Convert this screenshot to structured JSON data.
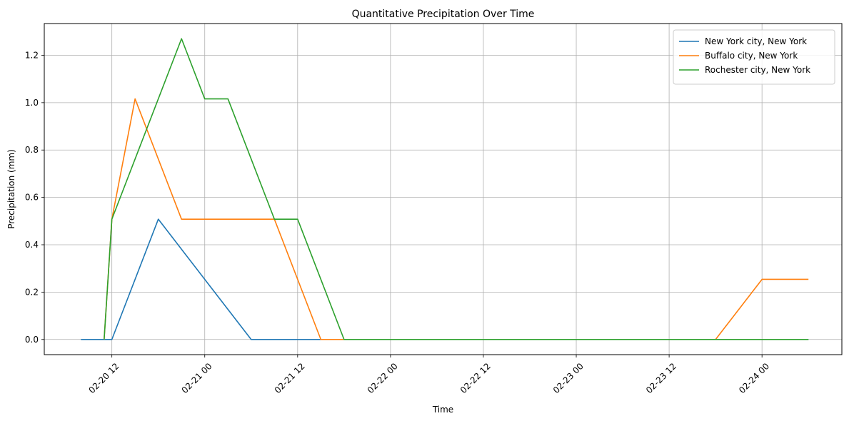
{
  "chart_data": {
    "type": "line",
    "title": "Quantitative Precipitation Over Time",
    "xlabel": "Time",
    "ylabel": "Precipitation (mm)",
    "grid": true,
    "legend_position": "top-right",
    "x_axis_type": "datetime",
    "xlim": [
      "2024-02-20T03:16",
      "2024-02-24T10:19"
    ],
    "ylim": [
      -0.064,
      1.334
    ],
    "x_ticks": [
      {
        "value": "2024-02-20T12:00",
        "label": "02-20 12"
      },
      {
        "value": "2024-02-21T00:00",
        "label": "02-21 00"
      },
      {
        "value": "2024-02-21T12:00",
        "label": "02-21 12"
      },
      {
        "value": "2024-02-22T00:00",
        "label": "02-22 00"
      },
      {
        "value": "2024-02-22T12:00",
        "label": "02-22 12"
      },
      {
        "value": "2024-02-23T00:00",
        "label": "02-23 00"
      },
      {
        "value": "2024-02-23T12:00",
        "label": "02-23 12"
      },
      {
        "value": "2024-02-24T00:00",
        "label": "02-24 00"
      }
    ],
    "y_ticks": [
      {
        "value": 0.0,
        "label": "0.0"
      },
      {
        "value": 0.2,
        "label": "0.2"
      },
      {
        "value": 0.4,
        "label": "0.4"
      },
      {
        "value": 0.6,
        "label": "0.6"
      },
      {
        "value": 0.8,
        "label": "0.8"
      },
      {
        "value": 1.0,
        "label": "1.0"
      },
      {
        "value": 1.2,
        "label": "1.2"
      }
    ],
    "series": [
      {
        "name": "New York city, New York",
        "color": "#1f77b4",
        "points": [
          {
            "x": "2024-02-20T08:00",
            "y": 0.0
          },
          {
            "x": "2024-02-20T12:00",
            "y": 0.0
          },
          {
            "x": "2024-02-20T18:00",
            "y": 0.508
          },
          {
            "x": "2024-02-21T00:00",
            "y": 0.254
          },
          {
            "x": "2024-02-21T06:00",
            "y": 0.0
          },
          {
            "x": "2024-02-21T12:00",
            "y": 0.0
          },
          {
            "x": "2024-02-21T18:00",
            "y": 0.0
          },
          {
            "x": "2024-02-22T00:00",
            "y": 0.0
          },
          {
            "x": "2024-02-23T06:00",
            "y": 0.0
          },
          {
            "x": "2024-02-23T12:00",
            "y": 0.0
          },
          {
            "x": "2024-02-24T00:00",
            "y": 0.0
          },
          {
            "x": "2024-02-24T06:00",
            "y": 0.0
          }
        ]
      },
      {
        "name": "Buffalo city, New York",
        "color": "#ff7f0e",
        "points": [
          {
            "x": "2024-02-20T11:00",
            "y": 0.0
          },
          {
            "x": "2024-02-20T12:00",
            "y": 0.508
          },
          {
            "x": "2024-02-20T15:00",
            "y": 1.016
          },
          {
            "x": "2024-02-20T21:00",
            "y": 0.508
          },
          {
            "x": "2024-02-21T00:00",
            "y": 0.508
          },
          {
            "x": "2024-02-21T09:00",
            "y": 0.508
          },
          {
            "x": "2024-02-21T15:00",
            "y": 0.0
          },
          {
            "x": "2024-02-21T18:00",
            "y": 0.0
          },
          {
            "x": "2024-02-23T18:00",
            "y": 0.0
          },
          {
            "x": "2024-02-24T00:00",
            "y": 0.254
          },
          {
            "x": "2024-02-24T06:00",
            "y": 0.254
          }
        ]
      },
      {
        "name": "Rochester city, New York",
        "color": "#2ca02c",
        "points": [
          {
            "x": "2024-02-20T11:00",
            "y": 0.0
          },
          {
            "x": "2024-02-20T12:00",
            "y": 0.508
          },
          {
            "x": "2024-02-20T21:00",
            "y": 1.27
          },
          {
            "x": "2024-02-21T00:00",
            "y": 1.016
          },
          {
            "x": "2024-02-21T03:00",
            "y": 1.016
          },
          {
            "x": "2024-02-21T09:00",
            "y": 0.508
          },
          {
            "x": "2024-02-21T12:00",
            "y": 0.508
          },
          {
            "x": "2024-02-21T18:00",
            "y": 0.0
          },
          {
            "x": "2024-02-23T06:00",
            "y": 0.0
          },
          {
            "x": "2024-02-24T06:00",
            "y": 0.0
          }
        ]
      }
    ]
  }
}
